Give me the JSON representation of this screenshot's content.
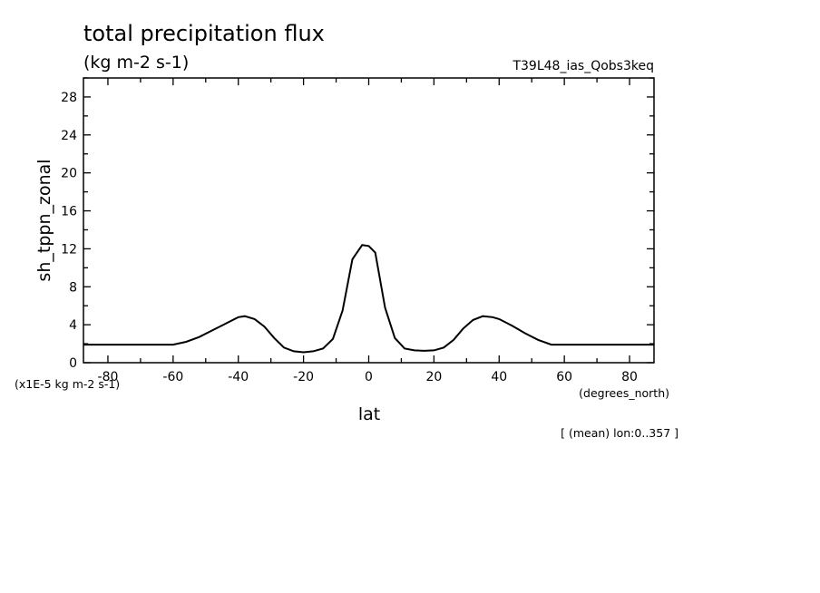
{
  "chart_data": {
    "type": "line",
    "title": "total precipitation flux",
    "units": "(kg m-2 s-1)",
    "experiment": "T39L48_ias_Qobs3keq",
    "ylabel": "sh_tppn_zonal",
    "xlabel": "lat",
    "y_scale_note": "(x1E-5 kg m-2 s-1)",
    "x_units": "(degrees_north)",
    "footnote": "[ (mean) lon:0..357 ]",
    "xlim": [
      -87.5,
      87.5
    ],
    "ylim": [
      0,
      30
    ],
    "x_ticks": [
      -80,
      -60,
      -40,
      -20,
      0,
      20,
      40,
      60,
      80
    ],
    "y_ticks": [
      0,
      4,
      8,
      12,
      16,
      20,
      24,
      28
    ],
    "x_tick_labels": [
      "-80",
      "-60",
      "-40",
      "-20",
      "0",
      "20",
      "40",
      "60",
      "80"
    ],
    "y_tick_labels": [
      "0",
      "4",
      "8",
      "12",
      "16",
      "20",
      "24",
      "28"
    ],
    "series": [
      {
        "x": [
          -87.5,
          -80,
          -70,
          -60,
          -56,
          -52,
          -48,
          -44,
          -40,
          -38,
          -35,
          -32,
          -29,
          -26,
          -23,
          -20,
          -17,
          -14,
          -11,
          -8,
          -5,
          -2,
          0,
          2,
          5,
          8,
          11,
          14,
          17,
          20,
          23,
          26,
          29,
          32,
          35,
          38,
          40,
          44,
          48,
          52,
          56,
          60,
          70,
          80,
          87.5
        ],
        "y": [
          1.9,
          1.9,
          1.9,
          1.9,
          2.2,
          2.7,
          3.4,
          4.1,
          4.8,
          4.9,
          4.6,
          3.8,
          2.6,
          1.6,
          1.2,
          1.1,
          1.2,
          1.5,
          2.5,
          5.5,
          10.9,
          12.4,
          12.3,
          11.6,
          5.8,
          2.6,
          1.5,
          1.3,
          1.25,
          1.3,
          1.6,
          2.4,
          3.6,
          4.5,
          4.9,
          4.8,
          4.6,
          3.9,
          3.1,
          2.4,
          1.9,
          1.9,
          1.9,
          1.9,
          1.9
        ]
      }
    ]
  }
}
